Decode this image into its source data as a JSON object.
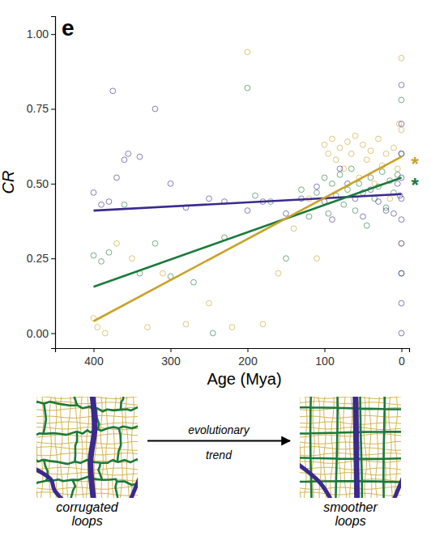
{
  "chart_data": {
    "type": "scatter",
    "panel_label": "e",
    "x_label": "Age (Mya)",
    "y_label": "CR",
    "xlim": [
      450,
      -10
    ],
    "ylim": [
      -0.05,
      1.06
    ],
    "xticks": [
      400,
      300,
      200,
      100,
      0
    ],
    "yticks": [
      {
        "value": 0,
        "label": "0.00"
      },
      {
        "value": 0.25,
        "label": "0.25"
      },
      {
        "value": 0.5,
        "label": "0.50"
      },
      {
        "value": 0.75,
        "label": "0.75"
      },
      {
        "value": 1,
        "label": "1.00"
      }
    ],
    "series": [
      {
        "type": "scatter",
        "marker": "open-circle",
        "color": "#c9a227",
        "x": [
          400,
          395,
          385,
          370,
          350,
          330,
          310,
          280,
          250,
          220,
          200,
          180,
          160,
          140,
          120,
          110,
          100,
          95,
          90,
          85,
          80,
          75,
          70,
          65,
          60,
          55,
          50,
          45,
          40,
          35,
          30,
          25,
          20,
          15,
          10,
          5,
          3,
          0,
          0,
          0
        ],
        "values": [
          0.05,
          0.02,
          0.0,
          0.3,
          0.25,
          0.02,
          0.2,
          0.03,
          0.1,
          0.02,
          0.94,
          0.03,
          0.2,
          0.35,
          0.45,
          0.25,
          0.63,
          0.6,
          0.65,
          0.58,
          0.62,
          0.55,
          0.64,
          0.6,
          0.66,
          0.52,
          0.63,
          0.58,
          0.61,
          0.5,
          0.65,
          0.56,
          0.6,
          0.45,
          0.62,
          0.55,
          0.7,
          0.3,
          0.68,
          0.92
        ]
      },
      {
        "type": "scatter",
        "marker": "open-circle",
        "color": "#1a7a3a",
        "x": [
          400,
          390,
          380,
          360,
          340,
          320,
          300,
          270,
          245,
          230,
          200,
          190,
          170,
          150,
          130,
          120,
          110,
          100,
          95,
          90,
          85,
          80,
          75,
          70,
          65,
          60,
          55,
          50,
          45,
          40,
          35,
          30,
          25,
          20,
          15,
          10,
          5,
          0,
          0,
          0
        ],
        "values": [
          0.26,
          0.24,
          0.27,
          0.43,
          0.2,
          0.3,
          0.19,
          0.17,
          0.0,
          0.32,
          0.82,
          0.46,
          0.44,
          0.25,
          0.48,
          0.39,
          0.47,
          0.52,
          0.4,
          0.5,
          0.46,
          0.53,
          0.43,
          0.48,
          0.55,
          0.41,
          0.5,
          0.47,
          0.36,
          0.52,
          0.45,
          0.49,
          0.54,
          0.42,
          0.51,
          0.47,
          0.53,
          0.2,
          0.6,
          0.78
        ]
      },
      {
        "type": "scatter",
        "marker": "open-circle",
        "color": "#3b2a8c",
        "x": [
          400,
          390,
          380,
          370,
          360,
          355,
          375,
          340,
          320,
          300,
          280,
          250,
          230,
          200,
          180,
          150,
          130,
          110,
          100,
          90,
          80,
          70,
          60,
          50,
          40,
          30,
          20,
          10,
          5,
          2,
          0,
          0,
          0,
          0,
          0,
          0,
          0,
          0,
          0,
          0
        ],
        "values": [
          0.47,
          0.43,
          0.44,
          0.52,
          0.58,
          0.6,
          0.81,
          0.59,
          0.75,
          0.5,
          0.42,
          0.45,
          0.44,
          0.41,
          0.44,
          0.4,
          0.45,
          0.49,
          0.44,
          0.38,
          0.55,
          0.5,
          0.45,
          0.39,
          0.48,
          0.44,
          0.41,
          0.4,
          0.5,
          0.46,
          0.0,
          0.1,
          0.2,
          0.3,
          0.38,
          0.45,
          0.52,
          0.6,
          0.7,
          0.83
        ]
      },
      {
        "type": "line",
        "line_style": "solid",
        "color": "#3b2a8c",
        "x": [
          400,
          0
        ],
        "values": [
          0.41,
          0.465
        ]
      },
      {
        "type": "line",
        "line_style": "solid",
        "color": "#1a7a3a",
        "x": [
          400,
          0
        ],
        "values": [
          0.155,
          0.52
        ]
      },
      {
        "type": "line",
        "line_style": "solid",
        "color": "#c9a227",
        "x": [
          400,
          0
        ],
        "values": [
          0.04,
          0.59
        ]
      }
    ],
    "annotations": [
      {
        "text": "*",
        "x": 0,
        "y": 0.59,
        "color": "#c9a227"
      },
      {
        "text": "*",
        "x": 0,
        "y": 0.52,
        "color": "#1a7a3a"
      }
    ],
    "illustration": {
      "left_label": "corrugated loops",
      "arrow_label_top": "evolutionary",
      "arrow_label_bottom": "trend",
      "right_label": "smoother loops"
    }
  }
}
